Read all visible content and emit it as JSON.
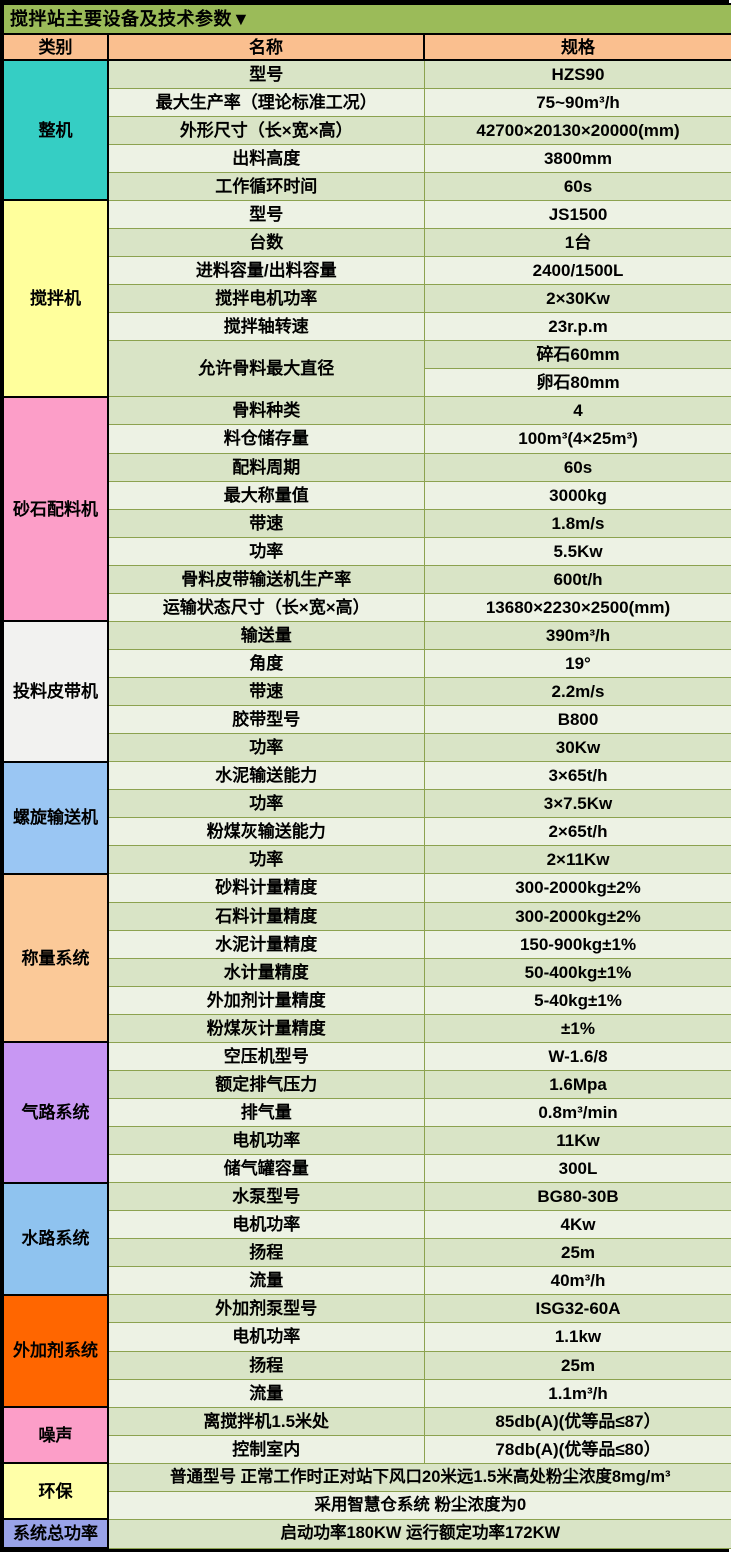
{
  "title": "搅拌站主要设备及技术参数▼",
  "header": {
    "category": "类别",
    "name": "名称",
    "spec": "规格"
  },
  "colors": {
    "title_bg": "#9BBB59",
    "header_bg": "#FABF8F",
    "row_dark": "#D9E4C6",
    "row_light": "#EDF2E4",
    "grid_line": "#8CA24F",
    "border": "#000000"
  },
  "sections": [
    {
      "category": "整机",
      "color": "#35CEC4",
      "rows": [
        {
          "name": "型号",
          "spec": "HZS90"
        },
        {
          "name": "最大生产率（理论标准工况）",
          "spec": "75~90m³/h"
        },
        {
          "name": "外形尺寸（长×宽×高）",
          "spec": "42700×20130×20000(mm)"
        },
        {
          "name": "出料高度",
          "spec": "3800mm"
        },
        {
          "name": "工作循环时间",
          "spec": "60s"
        }
      ]
    },
    {
      "category": "搅拌机",
      "color": "#FFFF9C",
      "rows": [
        {
          "name": "型号",
          "spec": "JS1500"
        },
        {
          "name": "台数",
          "spec": "1台"
        },
        {
          "name": "进料容量/出料容量",
          "spec": "2400/1500L"
        },
        {
          "name": "搅拌电机功率",
          "spec": "2×30Kw"
        },
        {
          "name": "搅拌轴转速",
          "spec": "23r.p.m"
        },
        {
          "name": "允许骨料最大直径",
          "name_rowspan": 2,
          "spec": "碎石60mm"
        },
        {
          "name": null,
          "spec": "卵石80mm"
        }
      ]
    },
    {
      "category": "砂石配料机",
      "color": "#FC9EC8",
      "rows": [
        {
          "name": "骨料种类",
          "spec": "4"
        },
        {
          "name": "料仓储存量",
          "spec": "100m³(4×25m³)"
        },
        {
          "name": "配料周期",
          "spec": "60s"
        },
        {
          "name": "最大称量值",
          "spec": "3000kg"
        },
        {
          "name": "带速",
          "spec": "1.8m/s"
        },
        {
          "name": "功率",
          "spec": "5.5Kw"
        },
        {
          "name": "骨料皮带输送机生产率",
          "spec": "600t/h"
        },
        {
          "name": "运输状态尺寸（长×宽×高）",
          "spec": "13680×2230×2500(mm)"
        }
      ]
    },
    {
      "category": "投料皮带机",
      "color": "#F2F2F0",
      "rows": [
        {
          "name": "输送量",
          "spec": "390m³/h"
        },
        {
          "name": "角度",
          "spec": "19°"
        },
        {
          "name": "带速",
          "spec": "2.2m/s"
        },
        {
          "name": "胶带型号",
          "spec": "B800"
        },
        {
          "name": "功率",
          "spec": "30Kw"
        }
      ]
    },
    {
      "category": "螺旋输送机",
      "color": "#9AC6F3",
      "rows": [
        {
          "name": "水泥输送能力",
          "spec": "3×65t/h"
        },
        {
          "name": "功率",
          "spec": "3×7.5Kw"
        },
        {
          "name": "粉煤灰输送能力",
          "spec": "2×65t/h"
        },
        {
          "name": "功率",
          "spec": "2×11Kw"
        }
      ]
    },
    {
      "category": "称量系统",
      "color": "#FBC998",
      "rows": [
        {
          "name": "砂料计量精度",
          "spec": "300-2000kg±2%"
        },
        {
          "name": "石料计量精度",
          "spec": "300-2000kg±2%"
        },
        {
          "name": "水泥计量精度",
          "spec": "150-900kg±1%"
        },
        {
          "name": "水计量精度",
          "spec": "50-400kg±1%"
        },
        {
          "name": "外加剂计量精度",
          "spec": "5-40kg±1%"
        },
        {
          "name": "粉煤灰计量精度",
          "spec": "±1%"
        }
      ]
    },
    {
      "category": "气路系统",
      "color": "#C897F3",
      "rows": [
        {
          "name": "空压机型号",
          "spec": "W-1.6/8"
        },
        {
          "name": "额定排气压力",
          "spec": "1.6Mpa"
        },
        {
          "name": "排气量",
          "spec": "0.8m³/min"
        },
        {
          "name": "电机功率",
          "spec": "11Kw"
        },
        {
          "name": "储气罐容量",
          "spec": "300L"
        }
      ]
    },
    {
      "category": "水路系统",
      "color": "#8FC3EF",
      "rows": [
        {
          "name": "水泵型号",
          "spec": "BG80-30B"
        },
        {
          "name": "电机功率",
          "spec": "4Kw"
        },
        {
          "name": "扬程",
          "spec": "25m"
        },
        {
          "name": "流量",
          "spec": "40m³/h"
        }
      ]
    },
    {
      "category": "外加剂系统",
      "color": "#FF6600",
      "rows": [
        {
          "name": "外加剂泵型号",
          "spec": "ISG32-60A"
        },
        {
          "name": "电机功率",
          "spec": "1.1kw"
        },
        {
          "name": "扬程",
          "spec": "25m"
        },
        {
          "name": "流量",
          "spec": "1.1m³/h"
        }
      ]
    },
    {
      "category": "噪声",
      "color": "#FC9EC8",
      "rows": [
        {
          "name": "离搅拌机1.5米处",
          "spec": "85db(A)(优等品≤87）"
        },
        {
          "name": "控制室内",
          "spec": "78db(A)(优等品≤80）"
        }
      ]
    },
    {
      "category": "环保",
      "color": "#FFFFA8",
      "rows": [
        {
          "merged": "普通型号 正常工作时正对站下风口20米远1.5米高处粉尘浓度8mg/m³"
        },
        {
          "merged": "采用智慧仓系统 粉尘浓度为0"
        }
      ]
    },
    {
      "category": "系统总功率",
      "color": "#99A3E8",
      "rows": [
        {
          "merged": "启动功率180KW 运行额定功率172KW"
        }
      ]
    }
  ]
}
